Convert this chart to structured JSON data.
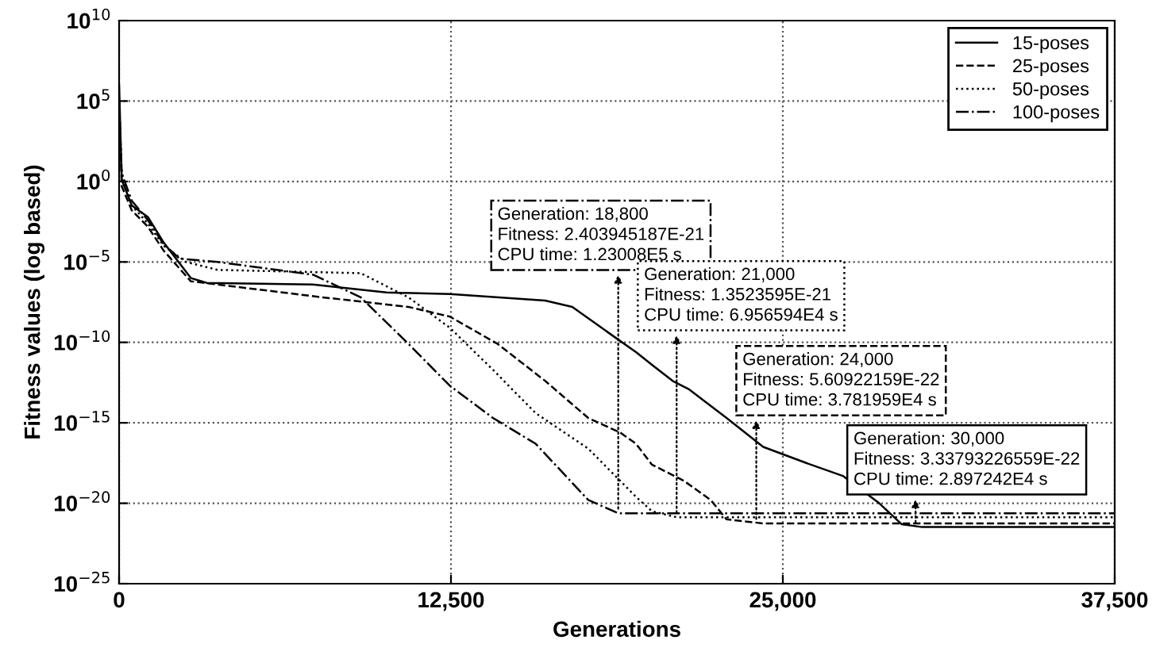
{
  "chart_data": {
    "type": "line",
    "xlabel": "Generations",
    "ylabel": "Fitness values (log based)",
    "log": "y",
    "grid": true,
    "legend": "top right",
    "xlim": [
      0,
      37500
    ],
    "xticks": [
      0,
      {
        "value": 12500,
        "label": "12,500"
      },
      {
        "value": 25000,
        "label": "25,000"
      },
      {
        "value": 37500,
        "label": "37,500"
      }
    ],
    "ylim": [
      1e-25,
      10000000000.0
    ],
    "yticks": [
      {
        "value": 1e-25,
        "label": "10$^{−25}$"
      },
      {
        "value": 1e-20,
        "label": "10$^{−20}$"
      },
      {
        "value": 1e-15,
        "label": "10$^{−15}$"
      },
      {
        "value": 1e-10,
        "label": "10$^{−10}$"
      },
      {
        "value": 1e-05,
        "label": "10$^{−5}$"
      },
      {
        "value": 1,
        "label": "10$^{0}$"
      },
      {
        "value": 100000.0,
        "label": "10$^{5}$"
      },
      {
        "value": 10000000000.0,
        "label": "10$^{10}$"
      }
    ],
    "series": [
      {
        "name": "15-poses",
        "color": "#000000",
        "line_style": "solid",
        "x": [
          0,
          100,
          480,
          1080,
          1680,
          2700,
          3300,
          7300,
          10070,
          12460,
          16050,
          17070,
          18690,
          19470,
          20070,
          20850,
          21450,
          22880,
          24260,
          25880,
          27260,
          28630,
          29470,
          30250,
          37500
        ],
        "values": [
          1000000.0,
          1.26,
          0.0316,
          0.0063,
          0.00016,
          1e-06,
          5e-07,
          4e-07,
          1.26e-07,
          1e-07,
          4e-08,
          1.6e-08,
          2e-10,
          2.5e-11,
          4e-12,
          4e-13,
          1.26e-13,
          2e-15,
          3.2e-17,
          3.2e-18,
          5e-19,
          1e-20,
          5e-22,
          3.3e-22,
          3.3e-22
        ]
      },
      {
        "name": "25-poses",
        "color": "#000000",
        "line_style": "dashed",
        "x": [
          0,
          100,
          480,
          1080,
          1680,
          2700,
          7670,
          10900,
          12460,
          14260,
          16050,
          17670,
          18870,
          19470,
          20070,
          21270,
          22280,
          22880,
          24260,
          37500
        ],
        "values": [
          100000.0,
          0.5,
          0.0158,
          0.00158,
          5e-05,
          6.3e-07,
          6.3e-08,
          1.6e-08,
          4e-09,
          8e-11,
          4e-13,
          2e-15,
          2.5e-16,
          5e-17,
          2.5e-18,
          2.5e-19,
          1.6e-20,
          1e-21,
          5.6e-22,
          5.6e-22
        ]
      },
      {
        "name": "50-poses",
        "color": "#000000",
        "line_style": "dotted",
        "x": [
          0,
          100,
          480,
          1080,
          1680,
          2520,
          3710,
          9100,
          10900,
          12460,
          14080,
          15690,
          17670,
          19470,
          20070,
          21000,
          37500
        ],
        "values": [
          100000.0,
          3.2,
          0.0316,
          0.0025,
          0.0001,
          1e-05,
          3.2e-06,
          2e-06,
          6.3e-08,
          8e-10,
          2e-12,
          4e-15,
          2.5e-17,
          2.5e-20,
          3.2e-21,
          1.35e-21,
          1.35e-21
        ]
      },
      {
        "name": "100-poses",
        "color": "#000000",
        "line_style": "dashdot",
        "x": [
          0,
          100,
          480,
          1080,
          1680,
          2280,
          3710,
          7310,
          9100,
          10900,
          12460,
          14080,
          15690,
          17670,
          18800,
          37500
        ],
        "values": [
          10000.0,
          3.2,
          0.063,
          0.004,
          0.000126,
          1.6e-05,
          1e-05,
          1.6e-06,
          6.3e-08,
          8e-11,
          2e-13,
          2e-15,
          5e-17,
          1.6e-20,
          2.4e-21,
          2.4e-21
        ]
      }
    ],
    "annotations": [
      {
        "text": "Generation: 18,800\nFitness: 2.403945187E-21\nCPU time: 1.23008E5 s",
        "x": 18800,
        "y": 2.403945187e-21
      },
      {
        "text": "Generation: 21,000\nFitness: 1.3523595E-21\nCPU time: 6.956594E4 s",
        "x": 21000,
        "y": 1.3523595e-21
      },
      {
        "text": "Generation: 24,000\nFitness: 5.60922159E-22\nCPU time: 3.781959E4 s",
        "x": 24000,
        "y": 5.60922159e-22
      },
      {
        "text": "Generation: 30,000\nFitness: 3.33793226559E-22\nCPU time: 2.897242E4 s",
        "x": 30000,
        "y": 3.33793226559e-22
      }
    ]
  }
}
